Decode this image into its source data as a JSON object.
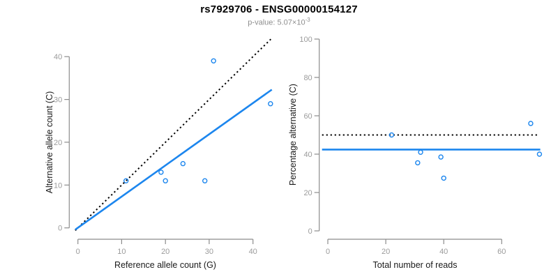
{
  "header": {
    "title": "rs7929706 - ENSG00000154127",
    "subtitle_text": "p-value: 5.07×10",
    "subtitle_exponent": "-3"
  },
  "colors": {
    "accent_blue": "#1C86EE",
    "dotted_black": "#000000",
    "axis_gray": "#8C8C8C",
    "tick_label_gray": "#9B9B9B",
    "axis_title_color": "#1A1A1A",
    "subtitle_gray": "#8E8E8E"
  },
  "chart_data": [
    {
      "type": "scatter",
      "name": "allele-counts",
      "xlabel": "Reference allele count (G)",
      "ylabel": "Alternative allele count (C)",
      "x_ticks": [
        0,
        10,
        20,
        30,
        40
      ],
      "y_ticks": [
        0,
        10,
        20,
        30,
        40
      ],
      "xlim": [
        -0.6,
        44.3
      ],
      "ylim": [
        -0.6,
        44.3
      ],
      "grid": false,
      "points": [
        [
          11,
          11
        ],
        [
          19,
          13
        ],
        [
          20,
          11
        ],
        [
          24,
          15
        ],
        [
          29,
          11
        ],
        [
          31,
          39
        ],
        [
          44,
          29
        ]
      ],
      "lines": [
        {
          "name": "identity-line",
          "style": "dotted",
          "color": "dotted_black",
          "x1": -0.6,
          "y1": -0.6,
          "x2": 44.3,
          "y2": 44.3
        },
        {
          "name": "fit-line",
          "style": "solid",
          "color": "accent_blue",
          "x1": -0.6,
          "y1": -0.4,
          "x2": 44.3,
          "y2": 32.3
        }
      ]
    },
    {
      "type": "scatter",
      "name": "percentage-alternative",
      "xlabel": "Total number of reads",
      "ylabel": "Percentage alternative (C)",
      "x_ticks": [
        0,
        20,
        40,
        60
      ],
      "y_ticks": [
        0,
        20,
        40,
        60,
        80,
        100
      ],
      "xlim": [
        -2,
        73.3
      ],
      "ylim": [
        0,
        100
      ],
      "grid": false,
      "points": [
        [
          22,
          50
        ],
        [
          31,
          35.5
        ],
        [
          32,
          41
        ],
        [
          39,
          38.5
        ],
        [
          40,
          27.5
        ],
        [
          70,
          56
        ],
        [
          73,
          40
        ]
      ],
      "lines": [
        {
          "name": "expected-50-line",
          "style": "dotted",
          "color": "dotted_black",
          "x1": -2,
          "y1": 50,
          "x2": 72.2,
          "y2": 50
        },
        {
          "name": "fit-line",
          "style": "solid",
          "color": "accent_blue",
          "x1": -2,
          "y1": 42.4,
          "x2": 73.3,
          "y2": 42.4
        }
      ]
    }
  ]
}
